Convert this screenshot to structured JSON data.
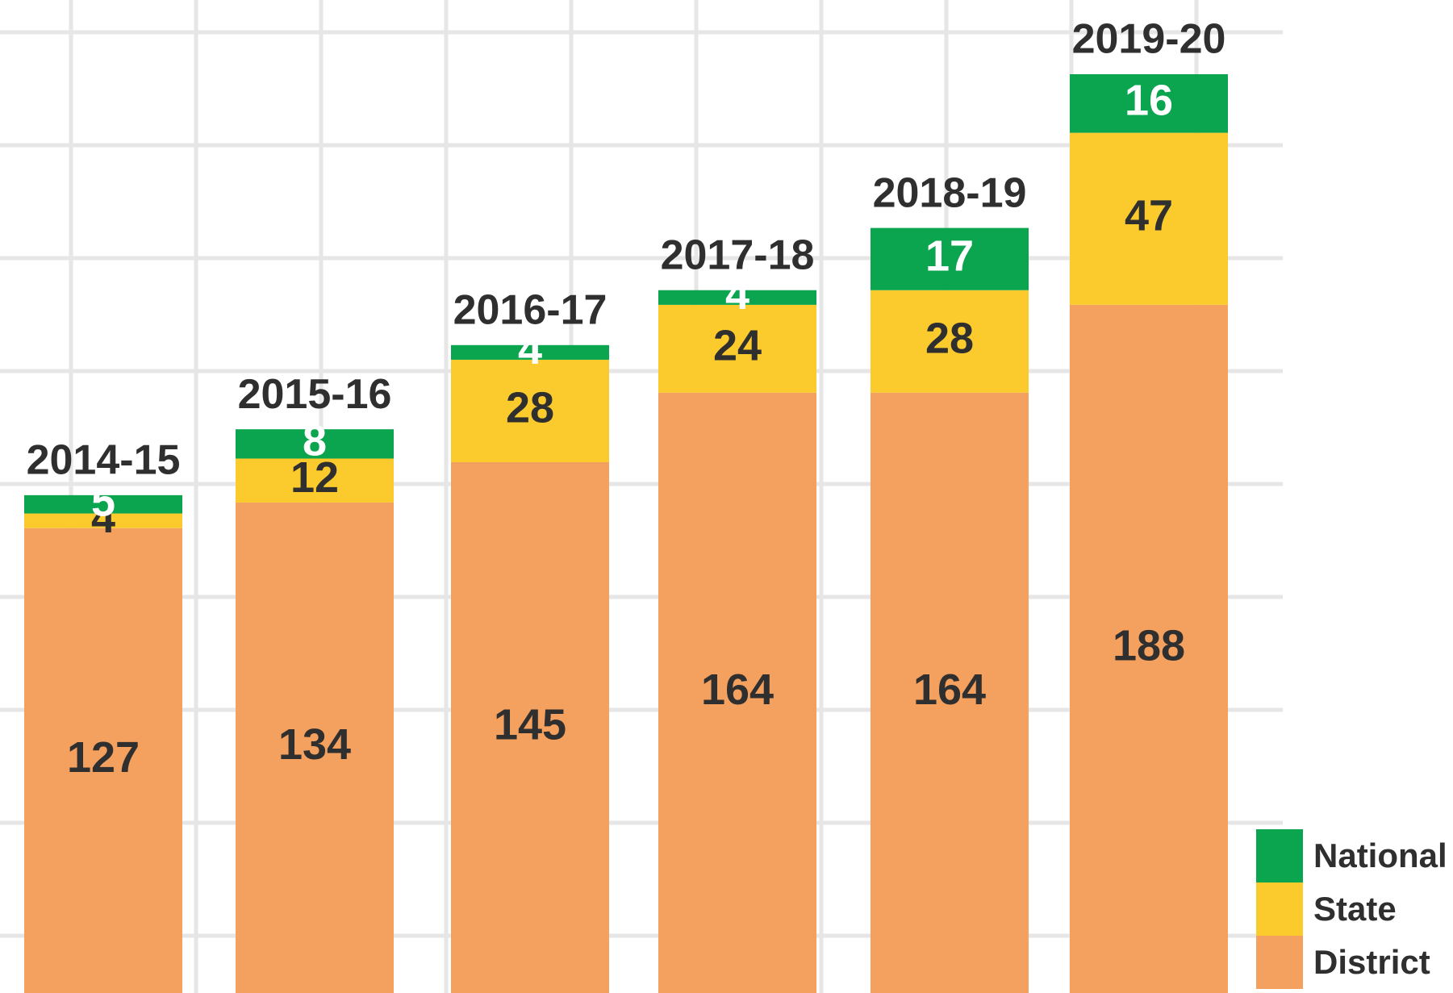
{
  "chart_data": {
    "type": "stacked-bar",
    "categories": [
      "2014-15",
      "2015-16",
      "2016-17",
      "2017-18",
      "2018-19",
      "2019-20"
    ],
    "series": [
      {
        "name": "District",
        "color": "#f4a05f",
        "values": [
          127,
          134,
          145,
          164,
          164,
          188
        ]
      },
      {
        "name": "State",
        "color": "#fbca2c",
        "values": [
          4,
          12,
          28,
          24,
          28,
          47
        ]
      },
      {
        "name": "National",
        "color": "#0ba54f",
        "values": [
          5,
          8,
          4,
          4,
          17,
          16
        ]
      }
    ],
    "grid": true
  }
}
